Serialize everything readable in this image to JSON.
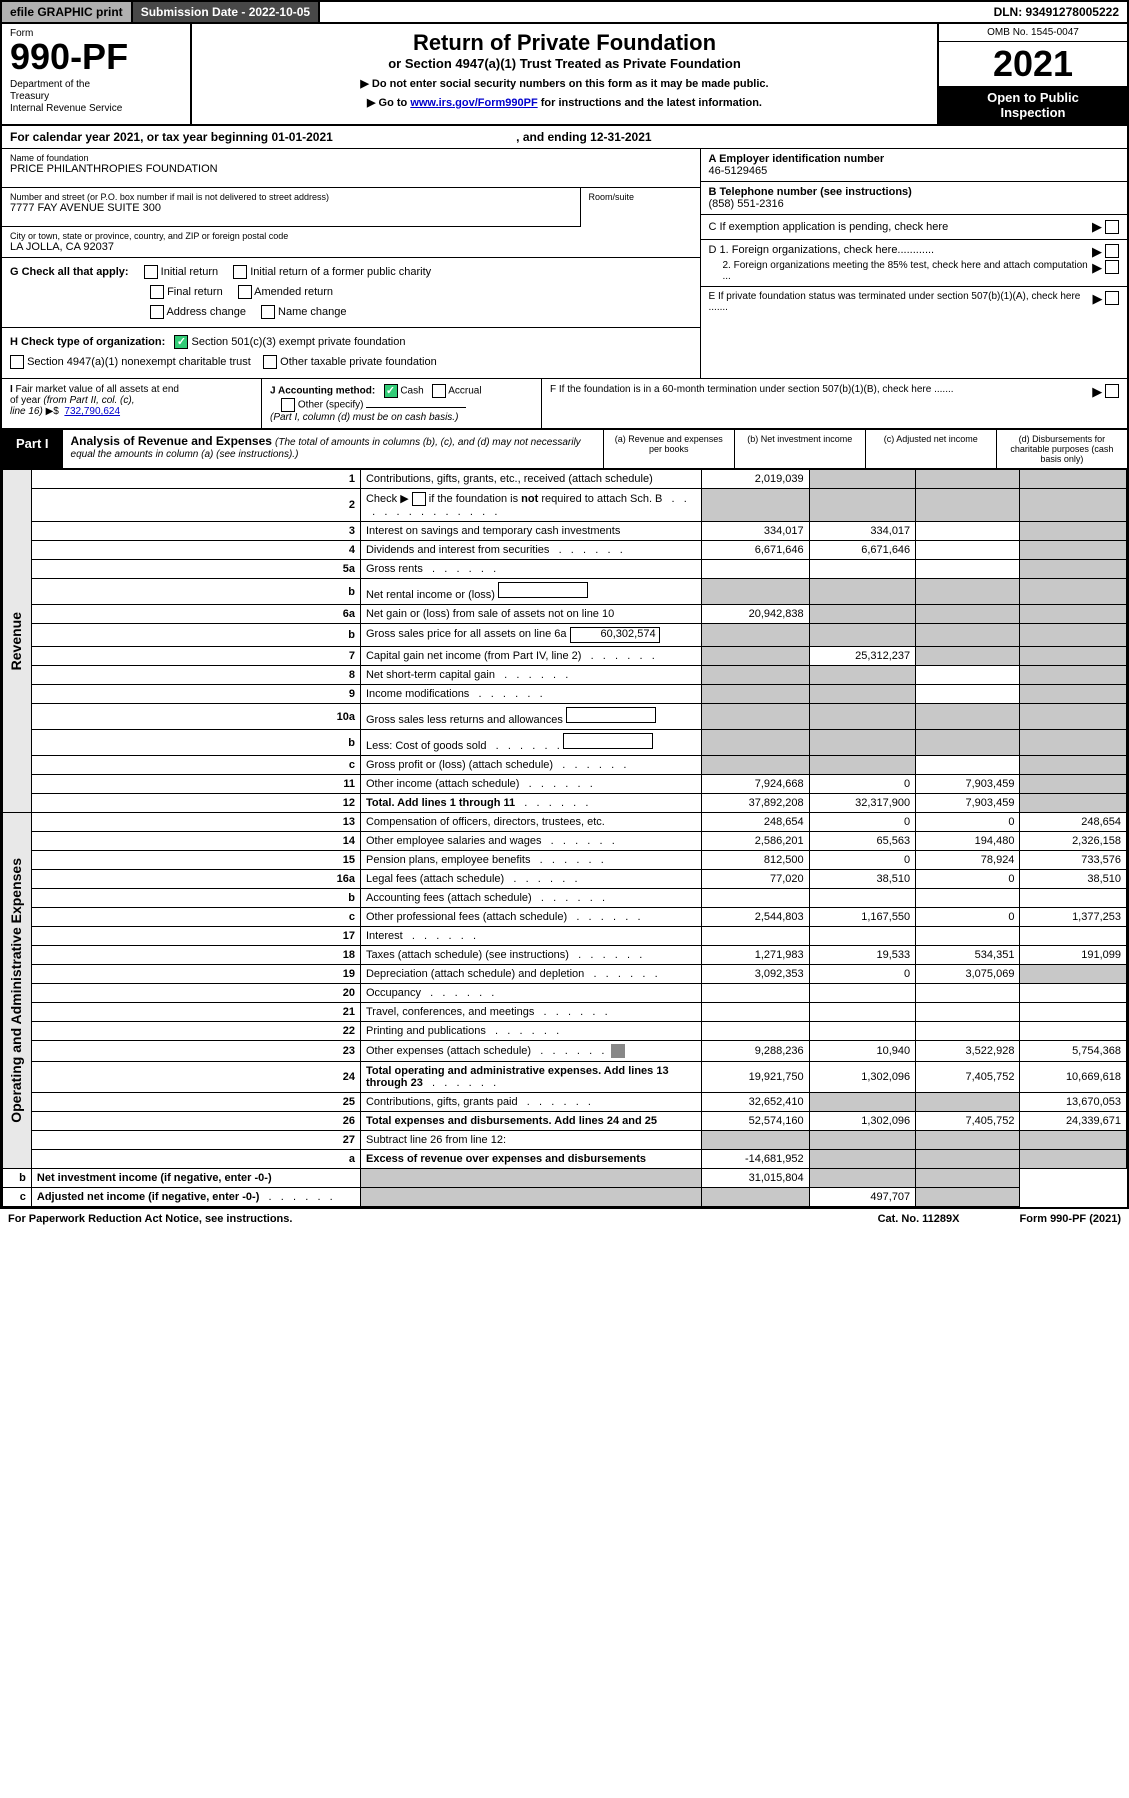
{
  "top": {
    "efile": "efile GRAPHIC print",
    "submission": "Submission Date - 2022-10-05",
    "dln": "DLN: 93491278005222"
  },
  "header": {
    "form_label": "Form",
    "form_num": "990-PF",
    "dept": "Department of the Treasury\nInternal Revenue Service",
    "title": "Return of Private Foundation",
    "sub1": "or Section 4947(a)(1) Trust Treated as Private Foundation",
    "sub2a": "▶ Do not enter social security numbers on this form as it may be made public.",
    "sub2b": "▶ Go to ",
    "sub2b_link": "www.irs.gov/Form990PF",
    "sub2c": " for instructions and the latest information.",
    "omb": "OMB No. 1545-0047",
    "year": "2021",
    "inspection": "Open to Public Inspection"
  },
  "cal": "For calendar year 2021, or tax year beginning 01-01-2021",
  "cal_end": ", and ending 12-31-2021",
  "info": {
    "name_lbl": "Name of foundation",
    "name": "PRICE PHILANTHROPIES FOUNDATION",
    "addr_lbl": "Number and street (or P.O. box number if mail is not delivered to street address)",
    "addr": "7777 FAY AVENUE SUITE 300",
    "suite_lbl": "Room/suite",
    "city_lbl": "City or town, state or province, country, and ZIP or foreign postal code",
    "city": "LA JOLLA, CA  92037",
    "ein_lbl": "A Employer identification number",
    "ein": "46-5129465",
    "phone_lbl": "B Telephone number (see instructions)",
    "phone": "(858) 551-2316",
    "c": "C If exemption application is pending, check here",
    "d1": "D 1. Foreign organizations, check here............",
    "d2": "2. Foreign organizations meeting the 85% test, check here and attach computation ...",
    "e": "E  If private foundation status was terminated under section 507(b)(1)(A), check here .......",
    "f": "F  If the foundation is in a 60-month termination under section 507(b)(1)(B), check here ......."
  },
  "g": {
    "lbl": "G Check all that apply:",
    "opts": [
      "Initial return",
      "Initial return of a former public charity",
      "Final return",
      "Amended return",
      "Address change",
      "Name change"
    ]
  },
  "h": {
    "lbl": "H Check type of organization:",
    "opt1": "Section 501(c)(3) exempt private foundation",
    "opt2": "Section 4947(a)(1) nonexempt charitable trust",
    "opt3": "Other taxable private foundation"
  },
  "i": {
    "lbl": "I Fair market value of all assets at end of year (from Part II, col. (c), line 16) ▶$",
    "val": "732,790,624"
  },
  "j": {
    "lbl": "J Accounting method:",
    "cash": "Cash",
    "accrual": "Accrual",
    "other": "Other (specify)",
    "note": "(Part I, column (d) must be on cash basis.)"
  },
  "part1": {
    "label": "Part I",
    "title": "Analysis of Revenue and Expenses",
    "desc": "(The total of amounts in columns (b), (c), and (d) may not necessarily equal the amounts in column (a) (see instructions).)",
    "cols": [
      "(a)    Revenue and expenses per books",
      "(b)   Net investment income",
      "(c)   Adjusted net income",
      "(d)  Disbursements for charitable purposes (cash basis only)"
    ]
  },
  "sides": {
    "revenue": "Revenue",
    "expenses": "Operating and Administrative Expenses"
  },
  "rows": [
    {
      "n": "1",
      "lbl": "Contributions, gifts, grants, etc., received (attach schedule)",
      "a": "2,019,039",
      "b": "shade",
      "c": "shade",
      "d": "shade"
    },
    {
      "n": "2",
      "lbl": "Check ▶ ☐ if the foundation is not required to attach Sch. B",
      "a": "shade",
      "b": "shade",
      "c": "shade",
      "d": "shade",
      "dots": true
    },
    {
      "n": "3",
      "lbl": "Interest on savings and temporary cash investments",
      "a": "334,017",
      "b": "334,017",
      "c": "",
      "d": "shade"
    },
    {
      "n": "4",
      "lbl": "Dividends and interest from securities",
      "a": "6,671,646",
      "b": "6,671,646",
      "c": "",
      "d": "shade",
      "dots": true
    },
    {
      "n": "5a",
      "lbl": "Gross rents",
      "a": "",
      "b": "",
      "c": "",
      "d": "shade",
      "dots": true
    },
    {
      "n": "b",
      "lbl": "Net rental income or (loss)",
      "a": "shade",
      "b": "shade",
      "c": "shade",
      "d": "shade",
      "box": true
    },
    {
      "n": "6a",
      "lbl": "Net gain or (loss) from sale of assets not on line 10",
      "a": "20,942,838",
      "b": "shade",
      "c": "shade",
      "d": "shade"
    },
    {
      "n": "b",
      "lbl": "Gross sales price for all assets on line 6a",
      "a": "shade",
      "b": "shade",
      "c": "shade",
      "d": "shade",
      "box": true,
      "boxval": "60,302,574"
    },
    {
      "n": "7",
      "lbl": "Capital gain net income (from Part IV, line 2)",
      "a": "shade",
      "b": "25,312,237",
      "c": "shade",
      "d": "shade",
      "dots": true
    },
    {
      "n": "8",
      "lbl": "Net short-term capital gain",
      "a": "shade",
      "b": "shade",
      "c": "",
      "d": "shade",
      "dots": true
    },
    {
      "n": "9",
      "lbl": "Income modifications",
      "a": "shade",
      "b": "shade",
      "c": "",
      "d": "shade",
      "dots": true
    },
    {
      "n": "10a",
      "lbl": "Gross sales less returns and allowances",
      "a": "shade",
      "b": "shade",
      "c": "shade",
      "d": "shade",
      "box": true
    },
    {
      "n": "b",
      "lbl": "Less: Cost of goods sold",
      "a": "shade",
      "b": "shade",
      "c": "shade",
      "d": "shade",
      "box": true,
      "dots": true
    },
    {
      "n": "c",
      "lbl": "Gross profit or (loss) (attach schedule)",
      "a": "shade",
      "b": "shade",
      "c": "",
      "d": "shade",
      "dots": true
    },
    {
      "n": "11",
      "lbl": "Other income (attach schedule)",
      "a": "7,924,668",
      "b": "0",
      "c": "7,903,459",
      "d": "shade",
      "dots": true
    },
    {
      "n": "12",
      "lbl": "Total. Add lines 1 through 11",
      "a": "37,892,208",
      "b": "32,317,900",
      "c": "7,903,459",
      "d": "shade",
      "bold": true,
      "dots": true
    },
    {
      "n": "13",
      "lbl": "Compensation of officers, directors, trustees, etc.",
      "a": "248,654",
      "b": "0",
      "c": "0",
      "d": "248,654"
    },
    {
      "n": "14",
      "lbl": "Other employee salaries and wages",
      "a": "2,586,201",
      "b": "65,563",
      "c": "194,480",
      "d": "2,326,158",
      "dots": true
    },
    {
      "n": "15",
      "lbl": "Pension plans, employee benefits",
      "a": "812,500",
      "b": "0",
      "c": "78,924",
      "d": "733,576",
      "dots": true
    },
    {
      "n": "16a",
      "lbl": "Legal fees (attach schedule)",
      "a": "77,020",
      "b": "38,510",
      "c": "0",
      "d": "38,510",
      "dots": true
    },
    {
      "n": "b",
      "lbl": "Accounting fees (attach schedule)",
      "a": "",
      "b": "",
      "c": "",
      "d": "",
      "dots": true
    },
    {
      "n": "c",
      "lbl": "Other professional fees (attach schedule)",
      "a": "2,544,803",
      "b": "1,167,550",
      "c": "0",
      "d": "1,377,253",
      "dots": true
    },
    {
      "n": "17",
      "lbl": "Interest",
      "a": "",
      "b": "",
      "c": "",
      "d": "",
      "dots": true
    },
    {
      "n": "18",
      "lbl": "Taxes (attach schedule) (see instructions)",
      "a": "1,271,983",
      "b": "19,533",
      "c": "534,351",
      "d": "191,099",
      "dots": true
    },
    {
      "n": "19",
      "lbl": "Depreciation (attach schedule) and depletion",
      "a": "3,092,353",
      "b": "0",
      "c": "3,075,069",
      "d": "shade",
      "dots": true
    },
    {
      "n": "20",
      "lbl": "Occupancy",
      "a": "",
      "b": "",
      "c": "",
      "d": "",
      "dots": true
    },
    {
      "n": "21",
      "lbl": "Travel, conferences, and meetings",
      "a": "",
      "b": "",
      "c": "",
      "d": "",
      "dots": true
    },
    {
      "n": "22",
      "lbl": "Printing and publications",
      "a": "",
      "b": "",
      "c": "",
      "d": "",
      "dots": true
    },
    {
      "n": "23",
      "lbl": "Other expenses (attach schedule)",
      "a": "9,288,236",
      "b": "10,940",
      "c": "3,522,928",
      "d": "5,754,368",
      "dots": true,
      "icon": true
    },
    {
      "n": "24",
      "lbl": "Total operating and administrative expenses. Add lines 13 through 23",
      "a": "19,921,750",
      "b": "1,302,096",
      "c": "7,405,752",
      "d": "10,669,618",
      "bold": true,
      "dots": true
    },
    {
      "n": "25",
      "lbl": "Contributions, gifts, grants paid",
      "a": "32,652,410",
      "b": "shade",
      "c": "shade",
      "d": "13,670,053",
      "dots": true
    },
    {
      "n": "26",
      "lbl": "Total expenses and disbursements. Add lines 24 and 25",
      "a": "52,574,160",
      "b": "1,302,096",
      "c": "7,405,752",
      "d": "24,339,671",
      "bold": true
    },
    {
      "n": "27",
      "lbl": "Subtract line 26 from line 12:",
      "a": "shade",
      "b": "shade",
      "c": "shade",
      "d": "shade"
    },
    {
      "n": "a",
      "lbl": "Excess of revenue over expenses and disbursements",
      "a": "-14,681,952",
      "b": "shade",
      "c": "shade",
      "d": "shade",
      "bold": true
    },
    {
      "n": "b",
      "lbl": "Net investment income (if negative, enter -0-)",
      "a": "shade",
      "b": "31,015,804",
      "c": "shade",
      "d": "shade",
      "bold": true
    },
    {
      "n": "c",
      "lbl": "Adjusted net income (if negative, enter -0-)",
      "a": "shade",
      "b": "shade",
      "c": "497,707",
      "d": "shade",
      "bold": true,
      "dots": true
    }
  ],
  "footer": {
    "left": "For Paperwork Reduction Act Notice, see instructions.",
    "mid": "Cat. No. 11289X",
    "right": "Form 990-PF (2021)"
  }
}
